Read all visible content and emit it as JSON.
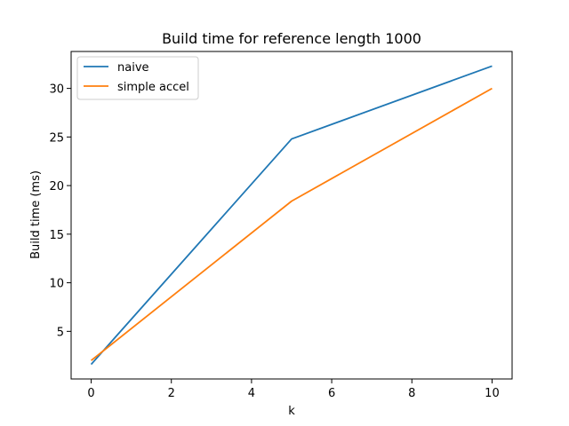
{
  "chart_data": {
    "type": "line",
    "title": "Build time for reference length 1000",
    "xlabel": "k",
    "ylabel": "Build time (ms)",
    "x": [
      0,
      5,
      10
    ],
    "xlim": [
      -0.5,
      10.5
    ],
    "ylim": [
      0.1,
      33.8
    ],
    "xticks": [
      0,
      2,
      4,
      6,
      8,
      10
    ],
    "yticks": [
      5,
      10,
      15,
      20,
      25,
      30
    ],
    "grid": false,
    "legend_position": "upper-left",
    "series": [
      {
        "name": "naive",
        "values": [
          1.6,
          24.8,
          32.3
        ],
        "color": "#1f77b4"
      },
      {
        "name": "simple accel",
        "values": [
          2.0,
          18.4,
          30.0
        ],
        "color": "#ff7f0e"
      }
    ]
  }
}
